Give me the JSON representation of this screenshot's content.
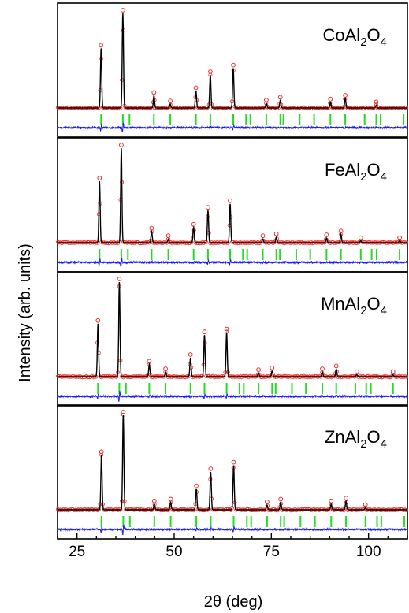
{
  "chart_data": {
    "type": "line",
    "xlabel": "2θ (deg)",
    "ylabel": "Intensity (arb. units)",
    "xlim": [
      20,
      110
    ],
    "xticks": [
      25,
      50,
      75,
      100
    ],
    "grid": false,
    "colors": {
      "observed": "#e8302a",
      "calculated": "#000000",
      "difference": "#1a1aff",
      "bragg_positions": "#22dd22",
      "frame": "#000000"
    },
    "panels": [
      {
        "label_parts": [
          "CoAl",
          "2",
          "O",
          "4"
        ],
        "peaks": [
          {
            "x": 31.2,
            "y": 0.63
          },
          {
            "x": 36.8,
            "y": 1.0
          },
          {
            "x": 44.8,
            "y": 0.13
          },
          {
            "x": 49.0,
            "y": 0.04
          },
          {
            "x": 55.6,
            "y": 0.18
          },
          {
            "x": 59.3,
            "y": 0.35
          },
          {
            "x": 65.2,
            "y": 0.42
          },
          {
            "x": 73.7,
            "y": 0.05
          },
          {
            "x": 77.3,
            "y": 0.08
          },
          {
            "x": 90.2,
            "y": 0.06
          },
          {
            "x": 94.0,
            "y": 0.1
          },
          {
            "x": 102.0,
            "y": 0.03
          }
        ],
        "bragg": [
          31.2,
          36.8,
          38.5,
          44.8,
          49.0,
          55.6,
          59.3,
          65.2,
          68.5,
          69.6,
          73.7,
          77.3,
          78.1,
          82.3,
          86.0,
          90.2,
          94.0,
          99.0,
          102.0,
          103.1,
          109.0
        ]
      },
      {
        "label_parts": [
          "FeAl",
          "2",
          "O",
          "4"
        ],
        "peaks": [
          {
            "x": 30.8,
            "y": 0.65
          },
          {
            "x": 36.4,
            "y": 1.0
          },
          {
            "x": 44.2,
            "y": 0.12
          },
          {
            "x": 48.5,
            "y": 0.04
          },
          {
            "x": 55.0,
            "y": 0.16
          },
          {
            "x": 58.7,
            "y": 0.34
          },
          {
            "x": 64.4,
            "y": 0.41
          },
          {
            "x": 72.8,
            "y": 0.04
          },
          {
            "x": 76.3,
            "y": 0.06
          },
          {
            "x": 89.2,
            "y": 0.05
          },
          {
            "x": 92.9,
            "y": 0.09
          },
          {
            "x": 98.0,
            "y": 0.02
          },
          {
            "x": 108.0,
            "y": 0.02
          }
        ],
        "bragg": [
          30.8,
          36.4,
          38.1,
          44.2,
          48.5,
          55.0,
          58.7,
          64.4,
          67.7,
          68.8,
          72.8,
          76.3,
          77.2,
          81.4,
          85.0,
          89.2,
          92.9,
          98.0,
          100.8,
          102.1,
          108.0
        ]
      },
      {
        "label_parts": [
          "MnAl",
          "2",
          "O",
          "4"
        ],
        "peaks": [
          {
            "x": 30.4,
            "y": 0.56
          },
          {
            "x": 35.9,
            "y": 1.0
          },
          {
            "x": 43.6,
            "y": 0.13
          },
          {
            "x": 47.8,
            "y": 0.05
          },
          {
            "x": 54.2,
            "y": 0.2
          },
          {
            "x": 57.8,
            "y": 0.44
          },
          {
            "x": 63.5,
            "y": 0.47
          },
          {
            "x": 71.7,
            "y": 0.04
          },
          {
            "x": 75.2,
            "y": 0.06
          },
          {
            "x": 88.1,
            "y": 0.05
          },
          {
            "x": 91.7,
            "y": 0.08
          },
          {
            "x": 97.0,
            "y": 0.02
          },
          {
            "x": 106.3,
            "y": 0.02
          }
        ],
        "bragg": [
          30.4,
          35.9,
          37.6,
          43.6,
          47.8,
          54.2,
          57.8,
          63.5,
          66.8,
          67.9,
          71.7,
          75.2,
          76.1,
          80.3,
          83.9,
          88.1,
          91.7,
          96.6,
          99.4,
          100.6,
          106.3
        ]
      },
      {
        "label_parts": [
          "ZnAl",
          "2",
          "O",
          "4"
        ],
        "peaks": [
          {
            "x": 31.3,
            "y": 0.58
          },
          {
            "x": 36.9,
            "y": 1.0
          },
          {
            "x": 44.9,
            "y": 0.06
          },
          {
            "x": 49.1,
            "y": 0.08
          },
          {
            "x": 55.7,
            "y": 0.22
          },
          {
            "x": 59.4,
            "y": 0.4
          },
          {
            "x": 65.3,
            "y": 0.47
          },
          {
            "x": 73.9,
            "y": 0.05
          },
          {
            "x": 77.4,
            "y": 0.08
          },
          {
            "x": 90.4,
            "y": 0.06
          },
          {
            "x": 94.2,
            "y": 0.09
          },
          {
            "x": 99.2,
            "y": 0.02
          }
        ],
        "bragg": [
          31.3,
          36.9,
          38.6,
          44.9,
          49.1,
          55.7,
          59.4,
          65.3,
          68.7,
          69.8,
          73.9,
          77.4,
          78.3,
          82.5,
          86.2,
          90.4,
          94.2,
          99.2,
          102.2,
          103.3,
          109.2
        ]
      }
    ]
  }
}
